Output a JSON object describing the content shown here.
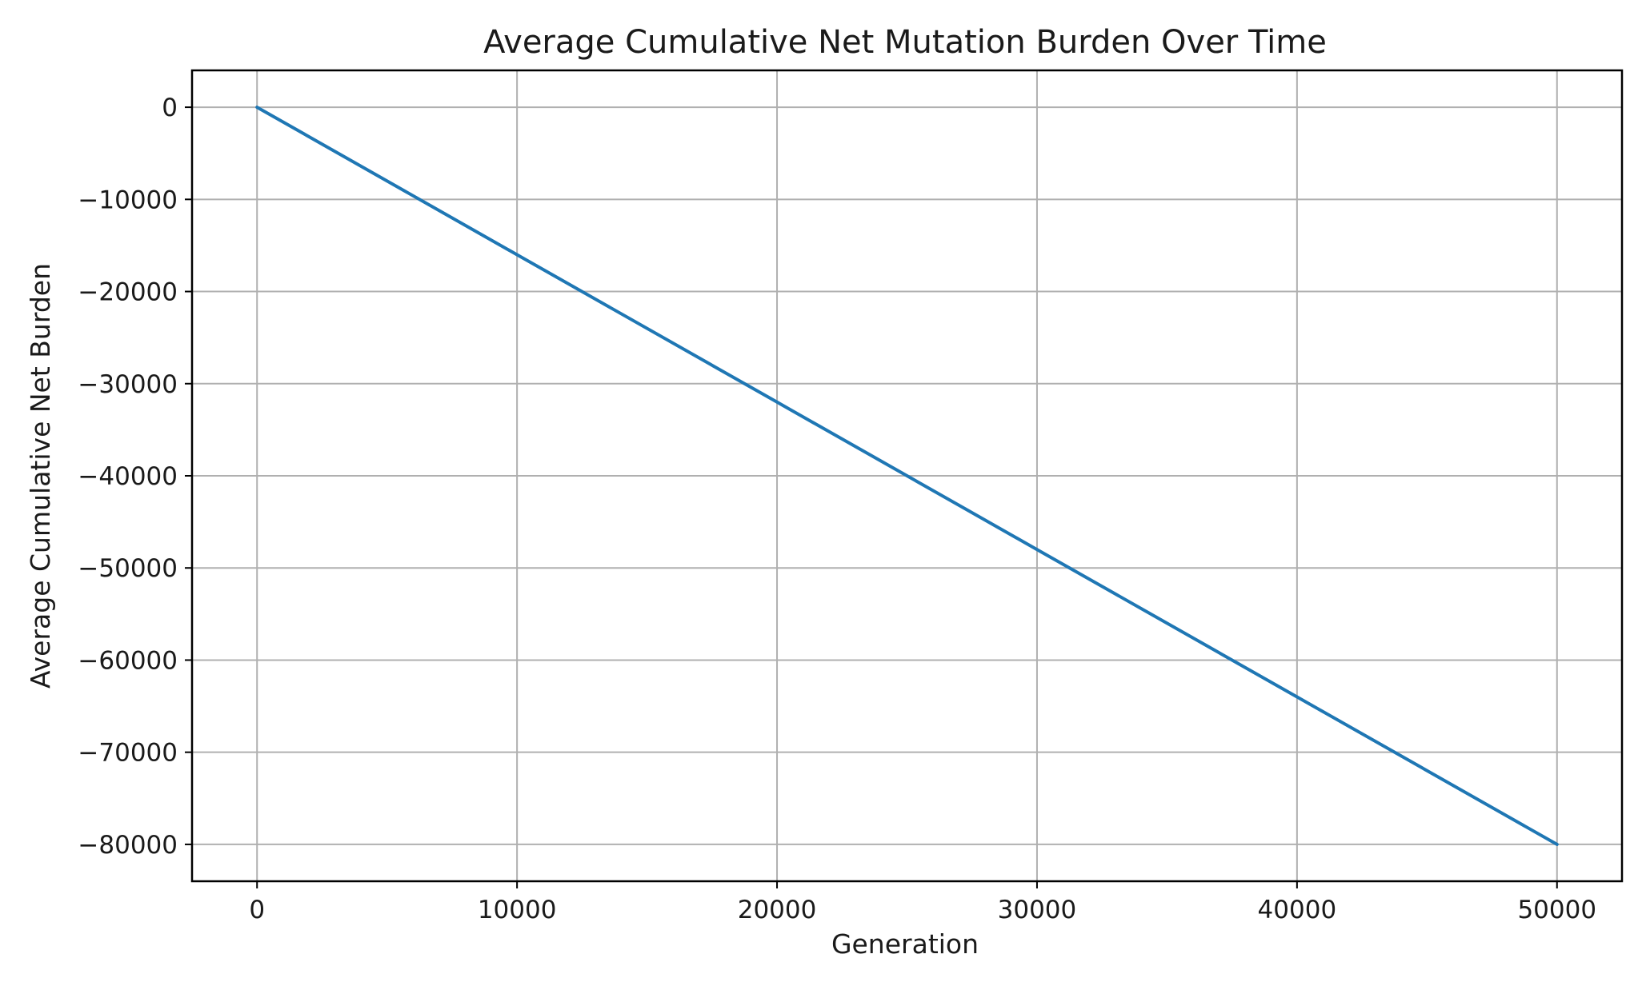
{
  "chart_data": {
    "type": "line",
    "title": "Average Cumulative Net Mutation Burden Over Time",
    "xlabel": "Generation",
    "ylabel": "Average Cumulative Net Burden",
    "xlim": [
      -2500,
      52500
    ],
    "ylim": [
      -84000,
      4000
    ],
    "grid": true,
    "x_ticks": [
      0,
      10000,
      20000,
      30000,
      40000,
      50000
    ],
    "x_tick_labels": [
      "0",
      "10000",
      "20000",
      "30000",
      "40000",
      "50000"
    ],
    "y_ticks": [
      0,
      -10000,
      -20000,
      -30000,
      -40000,
      -50000,
      -60000,
      -70000,
      -80000
    ],
    "y_tick_labels": [
      "0",
      "−10000",
      "−20000",
      "−30000",
      "−40000",
      "−50000",
      "−60000",
      "−70000",
      "−80000"
    ],
    "series": [
      {
        "color": "#1f77b4",
        "x": [
          0,
          10000,
          20000,
          30000,
          40000,
          50000
        ],
        "y": [
          0,
          -16000,
          -32000,
          -48000,
          -64000,
          -80000
        ]
      }
    ]
  }
}
